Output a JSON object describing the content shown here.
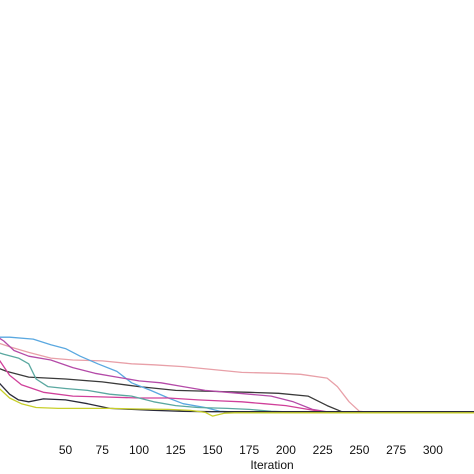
{
  "chart_data": {
    "type": "line",
    "title": "",
    "xlabel": "Iteration",
    "ylabel": "",
    "xlim": [
      0,
      330
    ],
    "ylim": [
      0,
      100
    ],
    "grid": false,
    "x_ticks": [
      50,
      75,
      100,
      125,
      150,
      175,
      200,
      225,
      250,
      275,
      300
    ],
    "series": [
      {
        "color": "#e8a0a8",
        "points": [
          [
            0,
            40
          ],
          [
            12,
            37
          ],
          [
            25,
            34
          ],
          [
            40,
            31
          ],
          [
            55,
            30
          ],
          [
            75,
            29.5
          ],
          [
            95,
            28
          ],
          [
            110,
            27.5
          ],
          [
            130,
            26.5
          ],
          [
            150,
            25
          ],
          [
            170,
            23.5
          ],
          [
            195,
            23
          ],
          [
            210,
            22.5
          ],
          [
            228,
            20.5
          ],
          [
            235,
            16
          ],
          [
            243,
            8
          ],
          [
            250,
            3
          ],
          [
            260,
            2.2
          ],
          [
            330,
            2.2
          ]
        ]
      },
      {
        "color": "#3a3a3a",
        "points": [
          [
            0,
            27
          ],
          [
            10,
            24
          ],
          [
            25,
            21
          ],
          [
            50,
            20
          ],
          [
            75,
            18.5
          ],
          [
            100,
            16
          ],
          [
            125,
            14
          ],
          [
            150,
            13.5
          ],
          [
            175,
            13
          ],
          [
            195,
            12.5
          ],
          [
            215,
            11
          ],
          [
            228,
            6
          ],
          [
            238,
            2.8
          ],
          [
            250,
            2.2
          ],
          [
            330,
            2.2
          ]
        ]
      },
      {
        "color": "#5aa8e0",
        "points": [
          [
            0,
            42
          ],
          [
            12,
            42
          ],
          [
            28,
            41
          ],
          [
            40,
            38
          ],
          [
            50,
            36
          ],
          [
            60,
            32
          ],
          [
            72,
            28
          ],
          [
            85,
            24
          ],
          [
            95,
            18
          ],
          [
            108,
            14
          ],
          [
            120,
            10
          ],
          [
            130,
            7
          ],
          [
            145,
            5
          ],
          [
            155,
            3
          ],
          [
            170,
            2.5
          ],
          [
            330,
            2.5
          ]
        ]
      },
      {
        "color": "#b44aa8",
        "points": [
          [
            0,
            44
          ],
          [
            8,
            40
          ],
          [
            15,
            35
          ],
          [
            25,
            32
          ],
          [
            40,
            30
          ],
          [
            55,
            26
          ],
          [
            70,
            23
          ],
          [
            85,
            21
          ],
          [
            100,
            19
          ],
          [
            115,
            18
          ],
          [
            130,
            16
          ],
          [
            145,
            14
          ],
          [
            160,
            13
          ],
          [
            175,
            12
          ],
          [
            190,
            11
          ],
          [
            205,
            8
          ],
          [
            218,
            4
          ],
          [
            230,
            2.5
          ],
          [
            330,
            2.5
          ]
        ]
      },
      {
        "color": "#d0409a",
        "points": [
          [
            0,
            38
          ],
          [
            5,
            30
          ],
          [
            12,
            22
          ],
          [
            20,
            17
          ],
          [
            35,
            13
          ],
          [
            55,
            11
          ],
          [
            80,
            10.5
          ],
          [
            100,
            10
          ],
          [
            120,
            10
          ],
          [
            140,
            9
          ],
          [
            155,
            8.5
          ],
          [
            170,
            8
          ],
          [
            185,
            7
          ],
          [
            200,
            6
          ],
          [
            215,
            4
          ],
          [
            225,
            2.8
          ],
          [
            330,
            2.5
          ]
        ]
      },
      {
        "color": "#5aa8a0",
        "points": [
          [
            0,
            35
          ],
          [
            8,
            33
          ],
          [
            18,
            31
          ],
          [
            25,
            28
          ],
          [
            30,
            20
          ],
          [
            38,
            16
          ],
          [
            50,
            15
          ],
          [
            65,
            14
          ],
          [
            80,
            12
          ],
          [
            95,
            11
          ],
          [
            110,
            8
          ],
          [
            125,
            6
          ],
          [
            140,
            5
          ],
          [
            160,
            4.5
          ],
          [
            175,
            4
          ],
          [
            190,
            3
          ],
          [
            210,
            2.5
          ],
          [
            330,
            2.5
          ]
        ]
      },
      {
        "color": "#2a2a3a",
        "points": [
          [
            0,
            22
          ],
          [
            6,
            17
          ],
          [
            12,
            12
          ],
          [
            18,
            9
          ],
          [
            25,
            8
          ],
          [
            35,
            9.5
          ],
          [
            50,
            9
          ],
          [
            65,
            7
          ],
          [
            80,
            4.5
          ],
          [
            95,
            4
          ],
          [
            110,
            3.5
          ],
          [
            130,
            3
          ],
          [
            150,
            2.8
          ],
          [
            330,
            2.8
          ]
        ]
      },
      {
        "color": "#c8cf2a",
        "points": [
          [
            0,
            20
          ],
          [
            5,
            15
          ],
          [
            12,
            10
          ],
          [
            20,
            7
          ],
          [
            30,
            5
          ],
          [
            45,
            4.5
          ],
          [
            60,
            4.5
          ],
          [
            80,
            4.5
          ],
          [
            100,
            4.2
          ],
          [
            120,
            4
          ],
          [
            135,
            3.5
          ],
          [
            145,
            2.5
          ],
          [
            150,
            0.5
          ],
          [
            158,
            2
          ],
          [
            165,
            2.2
          ],
          [
            330,
            2.2
          ]
        ]
      }
    ]
  }
}
